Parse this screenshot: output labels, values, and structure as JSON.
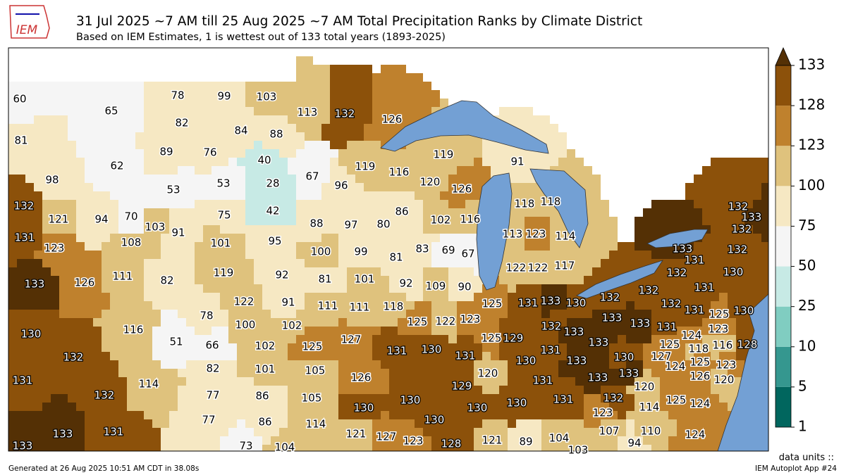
{
  "header": {
    "logo": "IEM",
    "title": "31 Jul 2025 ~7 AM till 25 Aug 2025 ~7 AM Total Precipitation Ranks by Climate District",
    "subtitle": "Based on IEM Estimates, 1 is wettest out of 133 total years (1893-2025)"
  },
  "map": {
    "districts": [
      60,
      65,
      81,
      62,
      98,
      78,
      99,
      103,
      82,
      84,
      88,
      89,
      76,
      40,
      53,
      53,
      28,
      75,
      42,
      91,
      103,
      101,
      95,
      113,
      132,
      126,
      67,
      96,
      119,
      88,
      97,
      80,
      119,
      116,
      120,
      126,
      86,
      102,
      116,
      83,
      69,
      67,
      91,
      118,
      118,
      113,
      123,
      114,
      122,
      122,
      117,
      100,
      99,
      81,
      81,
      101,
      92,
      111,
      111,
      118,
      119,
      92,
      82,
      122,
      91,
      78,
      100,
      102,
      132,
      121,
      94,
      70,
      131,
      123,
      108,
      111,
      133,
      126,
      130,
      116,
      51,
      132,
      131,
      132,
      114,
      66,
      102,
      125,
      82,
      101,
      105,
      77,
      86,
      105,
      133,
      133,
      131,
      77,
      86,
      114,
      73,
      104,
      127,
      126,
      130,
      130,
      109,
      90,
      125,
      122,
      123,
      131,
      130,
      131,
      129,
      130,
      125,
      125,
      129,
      120,
      130,
      131,
      133,
      130,
      132,
      133,
      133,
      133,
      131,
      133,
      130,
      132,
      130,
      131,
      130,
      131,
      121,
      127,
      123,
      128,
      121,
      89,
      104,
      103,
      133,
      133,
      120,
      132,
      123,
      114,
      125,
      124,
      107,
      110,
      94,
      124,
      132,
      133,
      132,
      133,
      131,
      132,
      132,
      130,
      132,
      131,
      132,
      131,
      125,
      130,
      133,
      131,
      124,
      123,
      125,
      118,
      116,
      128,
      127,
      124,
      125,
      123,
      126,
      120
    ],
    "colorbar": {
      "ticks": [
        1,
        5,
        10,
        25,
        50,
        75,
        100,
        123,
        128,
        133
      ],
      "colors": [
        "#01665e",
        "#35978f",
        "#80cdc1",
        "#c7eae5",
        "#f5f5f5",
        "#f6e8c3",
        "#dfc27d",
        "#bf812d",
        "#8c510a"
      ],
      "over_color": "#543005"
    }
  },
  "footer": {
    "units": "data units ::",
    "generated": "Generated at 26 Aug 2025 10:51 AM CDT in 38.08s",
    "app": "IEM Autoplot App #24"
  }
}
